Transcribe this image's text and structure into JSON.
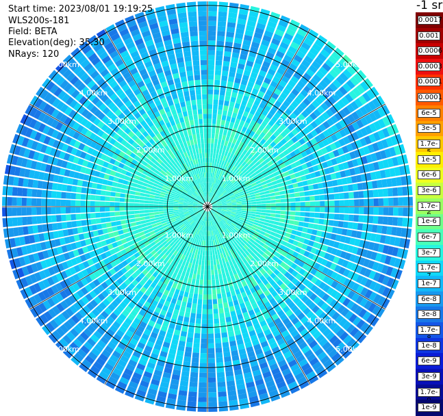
{
  "info": {
    "start_time": "Start time: 2023/08/01 19:19:25",
    "instrument": "WLS200s-181",
    "field": "Field: BETA",
    "elevation": "Elevation(deg): 35.30",
    "nrays": "NRays: 120"
  },
  "chart_data": {
    "type": "heatmap",
    "projection": "polar-ppi",
    "field": "BETA",
    "units": "-1 sr",
    "n_rays": 120,
    "range_rings_km": [
      1,
      2,
      3,
      4,
      5
    ],
    "ring_labels": [
      "1.00km",
      "2.00km",
      "3.00km",
      "4.00km",
      "5.00km"
    ],
    "max_range_km": 5.1,
    "spoke_angles_deg": [
      0,
      30,
      60,
      90,
      120,
      150,
      180,
      210,
      240,
      270,
      300,
      330
    ],
    "colorbar": {
      "labels": [
        "0.0017",
        "0.001",
        "0.0006",
        "0.0003",
        "0.00017",
        "0.0001",
        "6e-5",
        "3e-5",
        "1.7e-5",
        "1e-5",
        "6e-6",
        "3e-6",
        "1.7e-6",
        "1e-6",
        "6e-7",
        "3e-7",
        "1.7e-7",
        "1e-7",
        "6e-8",
        "3e-8",
        "1.7e-8",
        "1e-8",
        "6e-9",
        "3e-9",
        "1.7e-9",
        "1e-9"
      ],
      "colors": [
        "#800000",
        "#a00000",
        "#c80000",
        "#ee1010",
        "#ff3000",
        "#ff5a00",
        "#ff8000",
        "#ffa000",
        "#ffc800",
        "#ffee00",
        "#eeff20",
        "#c8ff40",
        "#9aff62",
        "#70ff8a",
        "#48ffb8",
        "#28f4e0",
        "#10d8f8",
        "#12b8f8",
        "#1898ee",
        "#1878e8",
        "#1456e6",
        "#0e36e0",
        "#0a1cd6",
        "#0810b8",
        "#060c96",
        "#040870"
      ]
    }
  }
}
